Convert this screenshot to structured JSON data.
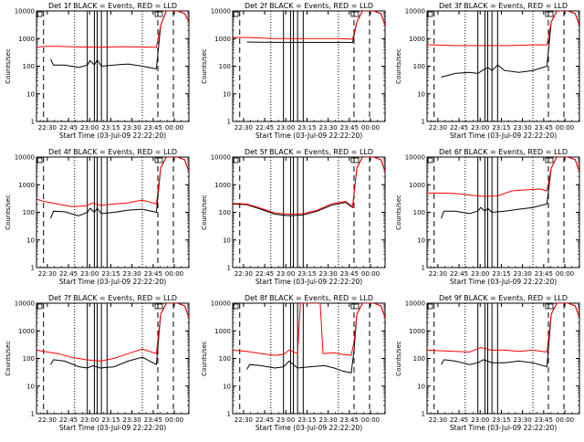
{
  "chart_data": {
    "type": "line",
    "layout": "3x3 grid",
    "y_scale": "log",
    "ylim": [
      1,
      10000
    ],
    "y_ticks": [
      "1",
      "10",
      "100",
      "1000",
      "10000"
    ],
    "x_ticks": [
      "22:30",
      "22:45",
      "23:00",
      "23:15",
      "23:30",
      "23:45",
      "00:00"
    ],
    "xlabel": "Start Time (03-Jul-09 22:22:20)",
    "ylabel": "Counts/sec",
    "series_colors": {
      "events": "#000000",
      "lld": "#ff0000"
    },
    "marker_lines": {
      "dashed_minutes": [
        5,
        86,
        97
      ],
      "dotted_minutes": [
        27,
        75
      ],
      "solid_minutes": [
        36,
        41,
        43,
        46,
        50
      ]
    },
    "panels": [
      {
        "title": "Det 1f BLACK = Events, RED = LLD",
        "lld": [
          [
            0,
            480
          ],
          [
            5,
            520
          ],
          [
            15,
            520
          ],
          [
            30,
            500
          ],
          [
            45,
            490
          ],
          [
            60,
            510
          ],
          [
            75,
            500
          ],
          [
            85,
            480
          ],
          [
            88,
            3000
          ],
          [
            92,
            10000
          ],
          [
            100,
            12000
          ],
          [
            105,
            8000
          ],
          [
            108,
            4000
          ]
        ],
        "events": [
          [
            10,
            180
          ],
          [
            12,
            110
          ],
          [
            20,
            110
          ],
          [
            30,
            90
          ],
          [
            36,
            110
          ],
          [
            38,
            160
          ],
          [
            41,
            110
          ],
          [
            43,
            170
          ],
          [
            46,
            100
          ],
          [
            55,
            110
          ],
          [
            65,
            120
          ],
          [
            75,
            100
          ],
          [
            85,
            80
          ],
          [
            88,
            3000
          ],
          [
            92,
            10000
          ],
          [
            100,
            12000
          ],
          [
            105,
            8000
          ],
          [
            108,
            4000
          ]
        ]
      },
      {
        "title": "Det 2f BLACK = Events, RED = LLD",
        "lld": [
          [
            0,
            1100
          ],
          [
            10,
            1100
          ],
          [
            20,
            1050
          ],
          [
            30,
            1000
          ],
          [
            45,
            1000
          ],
          [
            60,
            1000
          ],
          [
            75,
            1000
          ],
          [
            85,
            950
          ],
          [
            88,
            4000
          ],
          [
            92,
            10000
          ],
          [
            100,
            12000
          ],
          [
            105,
            8000
          ],
          [
            108,
            3000
          ]
        ],
        "events": [
          [
            10,
            750
          ],
          [
            20,
            740
          ],
          [
            30,
            730
          ],
          [
            40,
            730
          ],
          [
            50,
            730
          ],
          [
            60,
            730
          ],
          [
            70,
            730
          ],
          [
            80,
            730
          ],
          [
            85,
            720
          ],
          [
            88,
            4000
          ],
          [
            92,
            10000
          ],
          [
            100,
            12000
          ],
          [
            105,
            8000
          ],
          [
            108,
            3000
          ]
        ]
      },
      {
        "title": "Det 3f BLACK = Events, RED = LLD",
        "lld": [
          [
            0,
            600
          ],
          [
            10,
            580
          ],
          [
            20,
            560
          ],
          [
            30,
            560
          ],
          [
            40,
            560
          ],
          [
            50,
            560
          ],
          [
            60,
            560
          ],
          [
            70,
            580
          ],
          [
            80,
            600
          ],
          [
            85,
            580
          ],
          [
            88,
            4000
          ],
          [
            92,
            10000
          ],
          [
            100,
            12000
          ],
          [
            105,
            8000
          ],
          [
            108,
            3000
          ]
        ],
        "events": [
          [
            10,
            40
          ],
          [
            20,
            55
          ],
          [
            30,
            60
          ],
          [
            36,
            55
          ],
          [
            40,
            75
          ],
          [
            43,
            90
          ],
          [
            46,
            70
          ],
          [
            50,
            110
          ],
          [
            55,
            70
          ],
          [
            65,
            60
          ],
          [
            75,
            70
          ],
          [
            85,
            100
          ],
          [
            88,
            4000
          ],
          [
            92,
            10000
          ],
          [
            100,
            12000
          ],
          [
            105,
            8000
          ],
          [
            108,
            3000
          ]
        ]
      },
      {
        "title": "Det 4f BLACK = Events, RED = LLD",
        "lld": [
          [
            0,
            300
          ],
          [
            5,
            250
          ],
          [
            15,
            200
          ],
          [
            25,
            160
          ],
          [
            35,
            170
          ],
          [
            40,
            220
          ],
          [
            45,
            180
          ],
          [
            55,
            200
          ],
          [
            65,
            220
          ],
          [
            75,
            280
          ],
          [
            85,
            200
          ],
          [
            88,
            4000
          ],
          [
            92,
            10000
          ],
          [
            100,
            12000
          ],
          [
            105,
            8000
          ],
          [
            108,
            3000
          ]
        ],
        "events": [
          [
            10,
            60
          ],
          [
            12,
            110
          ],
          [
            20,
            105
          ],
          [
            30,
            75
          ],
          [
            36,
            100
          ],
          [
            38,
            140
          ],
          [
            41,
            100
          ],
          [
            43,
            140
          ],
          [
            46,
            90
          ],
          [
            55,
            100
          ],
          [
            65,
            120
          ],
          [
            75,
            130
          ],
          [
            85,
            100
          ],
          [
            88,
            4000
          ],
          [
            92,
            10000
          ],
          [
            100,
            12000
          ],
          [
            105,
            8000
          ],
          [
            108,
            3000
          ]
        ]
      },
      {
        "title": "Det 5f BLACK = Events, RED = LLD",
        "lld": [
          [
            0,
            210
          ],
          [
            10,
            200
          ],
          [
            20,
            140
          ],
          [
            30,
            95
          ],
          [
            40,
            85
          ],
          [
            50,
            90
          ],
          [
            60,
            120
          ],
          [
            70,
            200
          ],
          [
            80,
            250
          ],
          [
            85,
            160
          ],
          [
            88,
            4000
          ],
          [
            92,
            10000
          ],
          [
            100,
            12000
          ],
          [
            105,
            8000
          ],
          [
            108,
            3000
          ]
        ],
        "events": [
          [
            0,
            200
          ],
          [
            10,
            190
          ],
          [
            20,
            130
          ],
          [
            30,
            85
          ],
          [
            40,
            75
          ],
          [
            50,
            80
          ],
          [
            60,
            110
          ],
          [
            70,
            180
          ],
          [
            80,
            230
          ],
          [
            85,
            150
          ],
          [
            88,
            4000
          ],
          [
            92,
            10000
          ],
          [
            100,
            12000
          ],
          [
            105,
            8000
          ],
          [
            108,
            3000
          ]
        ]
      },
      {
        "title": "Det 6f BLACK = Events, RED = LLD",
        "lld": [
          [
            0,
            500
          ],
          [
            10,
            500
          ],
          [
            20,
            480
          ],
          [
            30,
            420
          ],
          [
            40,
            380
          ],
          [
            50,
            390
          ],
          [
            60,
            600
          ],
          [
            70,
            650
          ],
          [
            80,
            700
          ],
          [
            85,
            600
          ],
          [
            88,
            4000
          ],
          [
            92,
            10000
          ],
          [
            100,
            12000
          ],
          [
            105,
            8000
          ],
          [
            108,
            3000
          ]
        ],
        "events": [
          [
            10,
            60
          ],
          [
            12,
            110
          ],
          [
            20,
            110
          ],
          [
            30,
            90
          ],
          [
            36,
            110
          ],
          [
            38,
            150
          ],
          [
            41,
            110
          ],
          [
            43,
            140
          ],
          [
            46,
            100
          ],
          [
            55,
            110
          ],
          [
            65,
            130
          ],
          [
            75,
            150
          ],
          [
            85,
            200
          ],
          [
            88,
            4000
          ],
          [
            92,
            10000
          ],
          [
            100,
            12000
          ],
          [
            105,
            8000
          ],
          [
            108,
            3000
          ]
        ]
      },
      {
        "title": "Det 7f BLACK = Events, RED = LLD",
        "lld": [
          [
            0,
            200
          ],
          [
            5,
            180
          ],
          [
            15,
            150
          ],
          [
            25,
            110
          ],
          [
            35,
            90
          ],
          [
            45,
            80
          ],
          [
            55,
            100
          ],
          [
            65,
            150
          ],
          [
            75,
            220
          ],
          [
            85,
            150
          ],
          [
            88,
            4000
          ],
          [
            92,
            10000
          ],
          [
            100,
            12000
          ],
          [
            105,
            8000
          ],
          [
            108,
            3000
          ]
        ],
        "events": [
          [
            10,
            60
          ],
          [
            12,
            90
          ],
          [
            20,
            80
          ],
          [
            30,
            50
          ],
          [
            36,
            45
          ],
          [
            40,
            55
          ],
          [
            45,
            45
          ],
          [
            55,
            50
          ],
          [
            65,
            80
          ],
          [
            75,
            110
          ],
          [
            85,
            60
          ],
          [
            88,
            4000
          ],
          [
            92,
            10000
          ],
          [
            100,
            12000
          ],
          [
            105,
            8000
          ],
          [
            108,
            3000
          ]
        ]
      },
      {
        "title": "Det 8f BLACK = Events, RED = LLD",
        "lld": [
          [
            0,
            200
          ],
          [
            10,
            180
          ],
          [
            20,
            150
          ],
          [
            30,
            130
          ],
          [
            36,
            140
          ],
          [
            40,
            200
          ],
          [
            46,
            150
          ],
          [
            48,
            10000
          ],
          [
            62,
            10000
          ],
          [
            64,
            150
          ],
          [
            72,
            160
          ],
          [
            78,
            140
          ],
          [
            84,
            130
          ],
          [
            86,
            400
          ],
          [
            88,
            4000
          ],
          [
            92,
            10000
          ],
          [
            100,
            12000
          ],
          [
            105,
            8000
          ],
          [
            108,
            3000
          ]
        ],
        "events": [
          [
            10,
            40
          ],
          [
            12,
            60
          ],
          [
            20,
            55
          ],
          [
            30,
            45
          ],
          [
            36,
            50
          ],
          [
            40,
            80
          ],
          [
            46,
            45
          ],
          [
            55,
            50
          ],
          [
            65,
            55
          ],
          [
            72,
            45
          ],
          [
            78,
            35
          ],
          [
            84,
            30
          ],
          [
            86,
            200
          ],
          [
            88,
            4000
          ],
          [
            92,
            10000
          ],
          [
            100,
            12000
          ],
          [
            105,
            8000
          ],
          [
            108,
            3000
          ]
        ]
      },
      {
        "title": "Det 9f BLACK = Events, RED = LLD",
        "lld": [
          [
            0,
            200
          ],
          [
            10,
            190
          ],
          [
            20,
            180
          ],
          [
            30,
            170
          ],
          [
            38,
            250
          ],
          [
            45,
            200
          ],
          [
            55,
            200
          ],
          [
            65,
            180
          ],
          [
            75,
            200
          ],
          [
            85,
            170
          ],
          [
            88,
            4000
          ],
          [
            92,
            10000
          ],
          [
            100,
            12000
          ],
          [
            105,
            8000
          ],
          [
            108,
            3000
          ]
        ],
        "events": [
          [
            10,
            60
          ],
          [
            12,
            90
          ],
          [
            20,
            80
          ],
          [
            30,
            60
          ],
          [
            36,
            70
          ],
          [
            40,
            90
          ],
          [
            46,
            70
          ],
          [
            55,
            70
          ],
          [
            65,
            80
          ],
          [
            75,
            70
          ],
          [
            85,
            50
          ],
          [
            88,
            4000
          ],
          [
            92,
            10000
          ],
          [
            100,
            12000
          ],
          [
            105,
            8000
          ],
          [
            108,
            3000
          ]
        ]
      }
    ]
  }
}
